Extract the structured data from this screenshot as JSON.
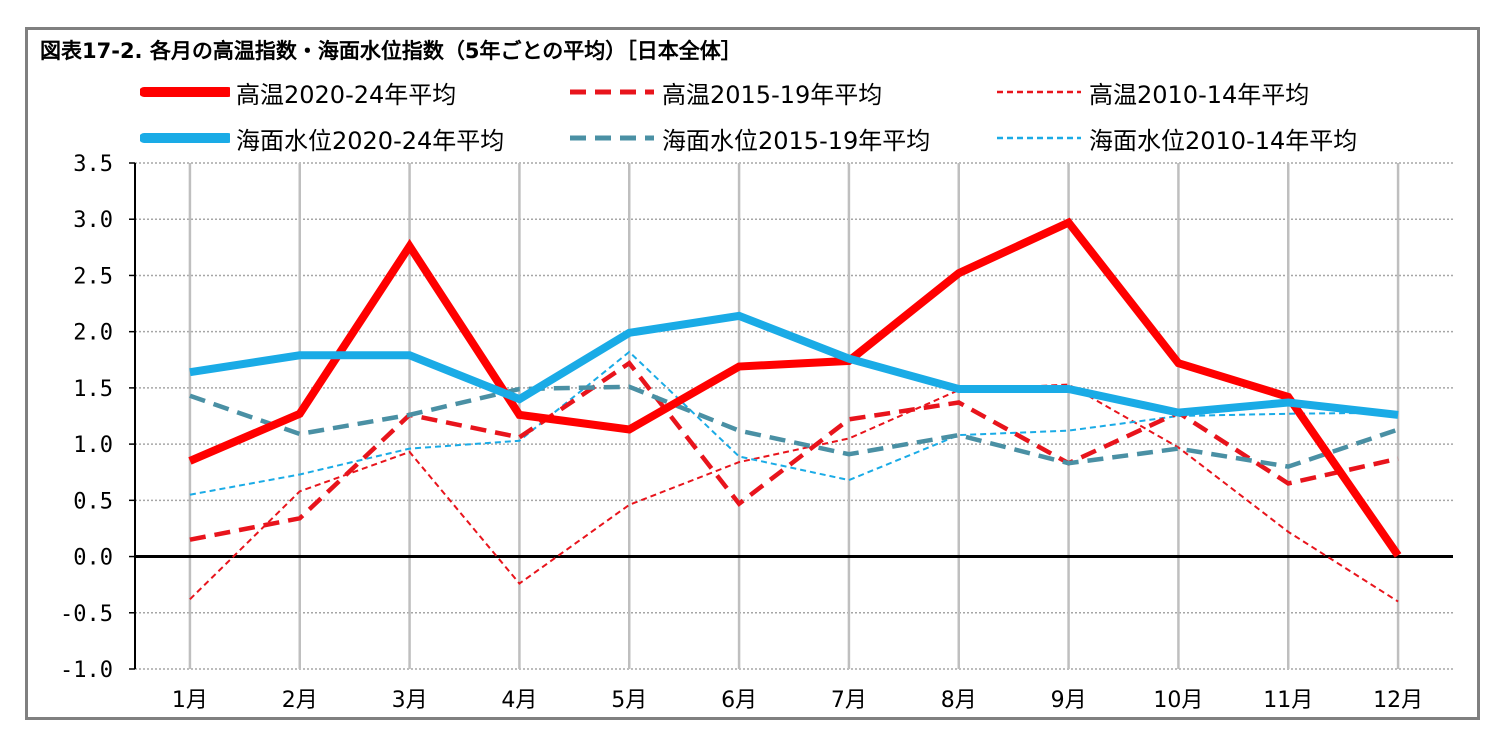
{
  "chart_data": {
    "type": "line",
    "title": "図表17-2. 各月の高温指数・海面水位指数（5年ごとの平均）［日本全体］",
    "categories": [
      "1月",
      "2月",
      "3月",
      "4月",
      "5月",
      "6月",
      "7月",
      "8月",
      "9月",
      "10月",
      "11月",
      "12月"
    ],
    "ylim": [
      -1.0,
      3.5
    ],
    "yticks": [
      "3.5",
      "3.0",
      "2.5",
      "2.0",
      "1.5",
      "1.0",
      "0.5",
      "0.0",
      "-0.5",
      "-1.0"
    ],
    "ytick_values": [
      3.5,
      3.0,
      2.5,
      2.0,
      1.5,
      1.0,
      0.5,
      0.0,
      -0.5,
      -1.0
    ],
    "grid": true,
    "legend_position": "top",
    "series": [
      {
        "name": "高温2020-24年平均",
        "color": "#ff0000",
        "style": "solid-thick",
        "values": [
          0.85,
          1.27,
          2.76,
          1.26,
          1.13,
          1.69,
          1.74,
          2.52,
          2.97,
          1.72,
          1.42,
          0.01
        ]
      },
      {
        "name": "高温2015-19年平均",
        "color": "#e8141c",
        "style": "dashed-medium",
        "values": [
          0.15,
          0.34,
          1.26,
          1.06,
          1.72,
          0.47,
          1.22,
          1.37,
          0.83,
          1.28,
          0.65,
          0.87
        ]
      },
      {
        "name": "高温2010-14年平均",
        "color": "#e8141c",
        "style": "dashed-thin",
        "values": [
          -0.38,
          0.58,
          0.93,
          -0.24,
          0.46,
          0.84,
          1.05,
          1.48,
          1.53,
          0.97,
          0.22,
          -0.4
        ]
      },
      {
        "name": "海面水位2020-24年平均",
        "color": "#1aabe6",
        "style": "solid-thick",
        "values": [
          1.64,
          1.79,
          1.79,
          1.4,
          1.99,
          2.14,
          1.76,
          1.49,
          1.49,
          1.28,
          1.37,
          1.26
        ]
      },
      {
        "name": "海面水位2015-19年平均",
        "color": "#4a90a4",
        "style": "dashed-medium",
        "values": [
          1.43,
          1.09,
          1.26,
          1.49,
          1.51,
          1.12,
          0.91,
          1.08,
          0.83,
          0.96,
          0.8,
          1.13
        ]
      },
      {
        "name": "海面水位2010-14年平均",
        "color": "#1aabe6",
        "style": "dashed-thin",
        "values": [
          0.55,
          0.73,
          0.96,
          1.03,
          1.82,
          0.89,
          0.68,
          1.08,
          1.12,
          1.25,
          1.27,
          1.28
        ]
      }
    ]
  }
}
